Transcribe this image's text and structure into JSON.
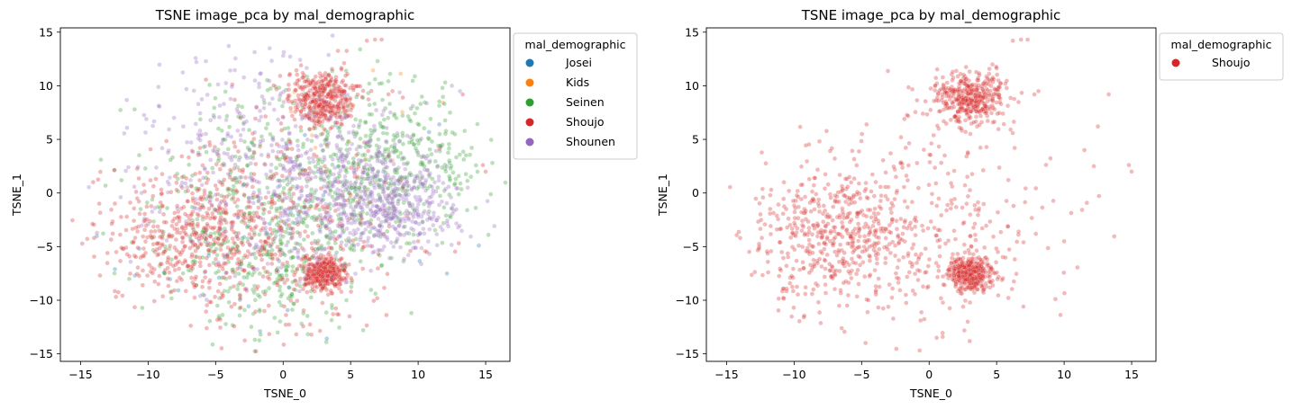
{
  "chart_data": [
    {
      "type": "scatter",
      "title": "TSNE image_pca by mal_demographic",
      "xlabel": "TSNE_0",
      "ylabel": "TSNE_1",
      "xlim": [
        -16.5,
        16.8
      ],
      "ylim": [
        -15.7,
        15.4
      ],
      "xticks": [
        -15,
        -10,
        -5,
        0,
        5,
        10,
        15
      ],
      "yticks": [
        -15,
        -10,
        -5,
        0,
        5,
        10,
        15
      ],
      "xtick_labels": [
        "−15",
        "−10",
        "−5",
        "0",
        "5",
        "10",
        "15"
      ],
      "ytick_labels": [
        "−15",
        "−10",
        "−5",
        "0",
        "5",
        "10",
        "15"
      ],
      "grid": false,
      "legend_title": "mal_demographic",
      "legend_position": "outside-upper-right",
      "series": [
        {
          "name": "Josei",
          "color": "#1f77b4",
          "approx_count": 50,
          "clusters": [
            {
              "cx": -5,
              "cy": -6,
              "sd": 3.5
            },
            {
              "cx": 3,
              "cy": 0,
              "sd": 5
            }
          ],
          "points": [
            [
              14.5,
              -4.9
            ],
            [
              -5.8,
              -7.4
            ],
            [
              -3.2,
              -6.9
            ],
            [
              1.2,
              -2.1
            ]
          ]
        },
        {
          "name": "Kids",
          "color": "#ff7f0e",
          "approx_count": 15,
          "clusters": [
            {
              "cx": 5,
              "cy": 7,
              "sd": 4
            }
          ],
          "points": [
            [
              2.8,
              9.6
            ],
            [
              6.1,
              3.2
            ]
          ]
        },
        {
          "name": "Seinen",
          "color": "#2ca02c",
          "approx_count": 1000,
          "clusters": [
            {
              "cx": 2,
              "cy": 1,
              "sd": 5.2
            },
            {
              "cx": 8,
              "cy": 3,
              "sd": 3.5
            },
            {
              "cx": -2,
              "cy": -6,
              "sd": 4
            }
          ],
          "points": [
            [
              12,
              10.3
            ],
            [
              11.8,
              9.8
            ],
            [
              7,
              12.3
            ],
            [
              5.7,
              13.4
            ],
            [
              3.2,
              -13.9
            ],
            [
              -11,
              7.8
            ],
            [
              9.5,
              -11.2
            ],
            [
              15.5,
              2.8
            ],
            [
              -13.5,
              3.1
            ]
          ]
        },
        {
          "name": "Shoujo",
          "color": "#d62728",
          "approx_count": 1600,
          "clusters": [
            {
              "cx": -7,
              "cy": -4,
              "sd": 3.2
            },
            {
              "cx": -1,
              "cy": -3,
              "sd": 5.2
            },
            {
              "cx": 3,
              "cy": 8.8,
              "sd": 1.3
            },
            {
              "cx": 3,
              "cy": -7.5,
              "sd": 0.8
            }
          ],
          "points": [
            [
              6.2,
              14.2
            ],
            [
              6.8,
              14.3
            ],
            [
              7.3,
              14.3
            ],
            [
              8.1,
              9.5
            ],
            [
              7.8,
              9.2
            ],
            [
              10,
              -4.5
            ],
            [
              15,
              2
            ],
            [
              14.8,
              2.6
            ],
            [
              -14,
              -4.2
            ],
            [
              13.3,
              9.2
            ]
          ]
        },
        {
          "name": "Shounen",
          "color": "#9467bd",
          "approx_count": 1000,
          "clusters": [
            {
              "cx": 4,
              "cy": 0.5,
              "sd": 3.3
            },
            {
              "cx": 8,
              "cy": -1,
              "sd": 2.5
            },
            {
              "cx": -2,
              "cy": 3,
              "sd": 5.5
            }
          ],
          "points": [
            [
              12.5,
              10
            ],
            [
              13.1,
              9.5
            ],
            [
              0,
              12.8
            ],
            [
              -1,
              13.5
            ],
            [
              6,
              -1
            ],
            [
              7.2,
              -0.5
            ]
          ]
        }
      ]
    },
    {
      "type": "scatter",
      "title": "TSNE image_pca by mal_demographic",
      "xlabel": "TSNE_0",
      "ylabel": "TSNE_1",
      "xlim": [
        -16.5,
        16.8
      ],
      "ylim": [
        -15.7,
        15.4
      ],
      "xticks": [
        -15,
        -10,
        -5,
        0,
        5,
        10,
        15
      ],
      "yticks": [
        -15,
        -10,
        -5,
        0,
        5,
        10,
        15
      ],
      "xtick_labels": [
        "−15",
        "−10",
        "−5",
        "0",
        "5",
        "10",
        "15"
      ],
      "ytick_labels": [
        "−15",
        "−10",
        "−5",
        "0",
        "5",
        "10",
        "15"
      ],
      "grid": false,
      "legend_title": "mal_demographic",
      "legend_position": "outside-upper-right",
      "series": [
        {
          "name": "Shoujo",
          "color": "#d62728",
          "approx_count": 1600,
          "clusters": [
            {
              "cx": -7,
              "cy": -4,
              "sd": 3.2
            },
            {
              "cx": -1,
              "cy": -3,
              "sd": 5.2
            },
            {
              "cx": 3,
              "cy": 8.8,
              "sd": 1.3
            },
            {
              "cx": 3,
              "cy": -7.5,
              "sd": 0.8
            }
          ],
          "points": [
            [
              6.2,
              14.2
            ],
            [
              6.8,
              14.3
            ],
            [
              7.3,
              14.3
            ],
            [
              8.1,
              9.5
            ],
            [
              7.8,
              9.2
            ],
            [
              10,
              -4.5
            ],
            [
              15,
              2
            ],
            [
              14.8,
              2.6
            ],
            [
              -14,
              -4.2
            ],
            [
              13.3,
              9.2
            ],
            [
              12.5,
              6.2
            ],
            [
              11.5,
              4
            ],
            [
              12.2,
              2.5
            ]
          ]
        }
      ]
    }
  ]
}
